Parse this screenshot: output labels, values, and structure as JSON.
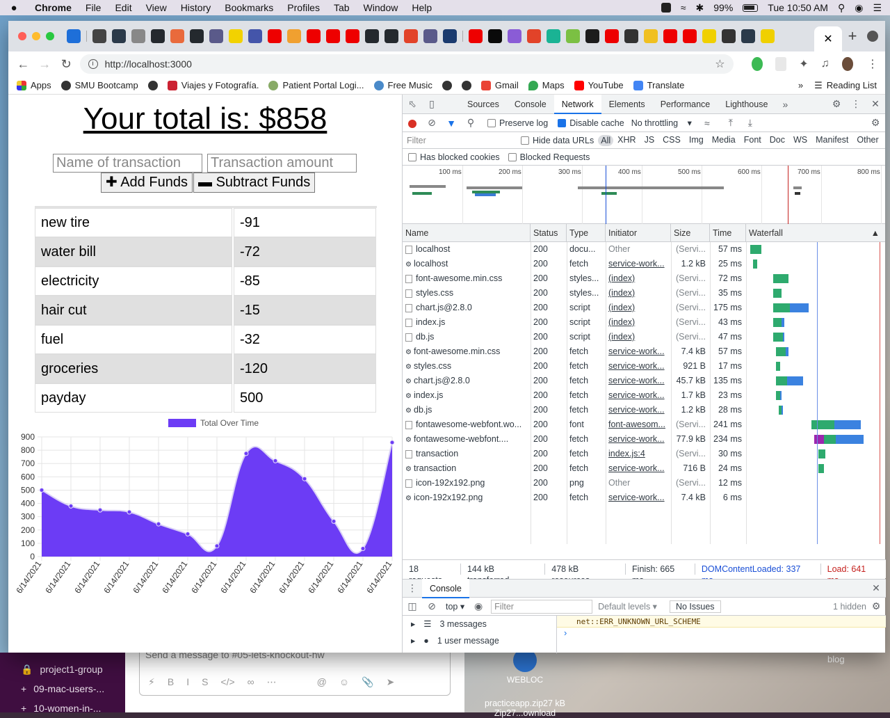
{
  "menubar": {
    "app": "Chrome",
    "items": [
      "File",
      "Edit",
      "View",
      "History",
      "Bookmarks",
      "Profiles",
      "Tab",
      "Window",
      "Help"
    ],
    "battery": "99%",
    "clock": "Tue 10:50 AM"
  },
  "browser": {
    "url": "http://localhost:3000",
    "bookmarks": [
      "Apps",
      "SMU Bootcamp",
      "Viajes y Fotografía.",
      "Patient Portal Logi...",
      "Free Music",
      "Gmail",
      "Maps",
      "YouTube",
      "Translate"
    ],
    "reading_list": "Reading List",
    "overflow": "»"
  },
  "app": {
    "total_label": "Your total is: $858",
    "name_placeholder": "Name of transaction",
    "amount_placeholder": "Transaction amount",
    "add_label": "Add Funds",
    "subtract_label": "Subtract Funds",
    "transactions": [
      {
        "name": "new tire",
        "value": "-91"
      },
      {
        "name": "water bill",
        "value": "-72"
      },
      {
        "name": "electricity",
        "value": "-85"
      },
      {
        "name": "hair cut",
        "value": "-15"
      },
      {
        "name": "fuel",
        "value": "-32"
      },
      {
        "name": "groceries",
        "value": "-120"
      },
      {
        "name": "payday",
        "value": "500"
      }
    ]
  },
  "chart_data": {
    "type": "area",
    "series": [
      {
        "name": "Total Over Time",
        "values": [
          500,
          380,
          350,
          335,
          245,
          170,
          80,
          775,
          720,
          585,
          265,
          60,
          858
        ]
      }
    ],
    "categories": [
      "6/14/2021",
      "6/14/2021",
      "6/14/2021",
      "6/14/2021",
      "6/14/2021",
      "6/14/2021",
      "6/14/2021",
      "6/14/2021",
      "6/14/2021",
      "6/14/2021",
      "6/14/2021",
      "6/14/2021",
      "6/14/2021"
    ],
    "tick_labels": [
      "6/14/2021",
      "6/14/2021",
      "6/14/2021",
      "6/14/2021",
      "6/14/2021",
      "6/14/2021",
      "6/14/2021",
      "6/14/2021",
      "6/14/2021",
      "6/14/2021",
      "6/14/2021",
      "6/14/2021",
      "6/14/2021"
    ],
    "yticks": [
      "0",
      "100",
      "200",
      "300",
      "400",
      "500",
      "600",
      "700",
      "800",
      "900"
    ],
    "ylim": [
      0,
      900
    ],
    "grid": true,
    "legend": "top",
    "color": "#6c3cf5"
  },
  "devtools": {
    "tabs": [
      "Sources",
      "Console",
      "Network",
      "Elements",
      "Performance",
      "Lighthouse"
    ],
    "active_tab": "Network",
    "more": "»",
    "preserve_log": "Preserve log",
    "disable_cache": "Disable cache",
    "throttling": "No throttling",
    "filter_placeholder": "Filter",
    "hide_data_urls": "Hide data URLs",
    "filter_types": [
      "All",
      "XHR",
      "JS",
      "CSS",
      "Img",
      "Media",
      "Font",
      "Doc",
      "WS",
      "Manifest",
      "Other"
    ],
    "has_blocked_cookies": "Has blocked cookies",
    "blocked_requests": "Blocked Requests",
    "overview_ticks": [
      "100 ms",
      "200 ms",
      "300 ms",
      "400 ms",
      "500 ms",
      "600 ms",
      "700 ms",
      "800 ms"
    ],
    "columns": [
      "Name",
      "Status",
      "Type",
      "Initiator",
      "Size",
      "Time",
      "Waterfall"
    ],
    "requests": [
      {
        "name": "localhost",
        "sw": false,
        "status": "200",
        "type": "docu...",
        "initiator": "Other",
        "init_link": false,
        "size": "(Servi...",
        "time": "57 ms",
        "wf_start": 0.03,
        "wf_wait": 0.08,
        "wf_dl": 0.0
      },
      {
        "name": "localhost",
        "sw": true,
        "status": "200",
        "type": "fetch",
        "initiator": "service-work...",
        "init_link": true,
        "size": "1.2 kB",
        "time": "25 ms",
        "wf_start": 0.05,
        "wf_wait": 0.03,
        "wf_dl": 0.0
      },
      {
        "name": "font-awesome.min.css",
        "sw": false,
        "status": "200",
        "type": "styles...",
        "initiator": "(index)",
        "init_link": true,
        "size": "(Servi...",
        "time": "72 ms",
        "wf_start": 0.2,
        "wf_wait": 0.11,
        "wf_dl": 0.0
      },
      {
        "name": "styles.css",
        "sw": false,
        "status": "200",
        "type": "styles...",
        "initiator": "(index)",
        "init_link": true,
        "size": "(Servi...",
        "time": "35 ms",
        "wf_start": 0.2,
        "wf_wait": 0.06,
        "wf_dl": 0.0
      },
      {
        "name": "chart.js@2.8.0",
        "sw": false,
        "status": "200",
        "type": "script",
        "initiator": "(index)",
        "init_link": true,
        "size": "(Servi...",
        "time": "175 ms",
        "wf_start": 0.2,
        "wf_wait": 0.12,
        "wf_dl": 0.14
      },
      {
        "name": "index.js",
        "sw": false,
        "status": "200",
        "type": "script",
        "initiator": "(index)",
        "init_link": true,
        "size": "(Servi...",
        "time": "43 ms",
        "wf_start": 0.2,
        "wf_wait": 0.06,
        "wf_dl": 0.02
      },
      {
        "name": "db.js",
        "sw": false,
        "status": "200",
        "type": "script",
        "initiator": "(index)",
        "init_link": true,
        "size": "(Servi...",
        "time": "47 ms",
        "wf_start": 0.2,
        "wf_wait": 0.07,
        "wf_dl": 0.01
      },
      {
        "name": "font-awesome.min.css",
        "sw": true,
        "status": "200",
        "type": "fetch",
        "initiator": "service-work...",
        "init_link": true,
        "size": "7.4 kB",
        "time": "57 ms",
        "wf_start": 0.22,
        "wf_wait": 0.07,
        "wf_dl": 0.02
      },
      {
        "name": "styles.css",
        "sw": true,
        "status": "200",
        "type": "fetch",
        "initiator": "service-work...",
        "init_link": true,
        "size": "921 B",
        "time": "17 ms",
        "wf_start": 0.22,
        "wf_wait": 0.03,
        "wf_dl": 0.0
      },
      {
        "name": "chart.js@2.8.0",
        "sw": true,
        "status": "200",
        "type": "fetch",
        "initiator": "service-work...",
        "init_link": true,
        "size": "45.7 kB",
        "time": "135 ms",
        "wf_start": 0.22,
        "wf_wait": 0.08,
        "wf_dl": 0.12
      },
      {
        "name": "index.js",
        "sw": true,
        "status": "200",
        "type": "fetch",
        "initiator": "service-work...",
        "init_link": true,
        "size": "1.7 kB",
        "time": "23 ms",
        "wf_start": 0.22,
        "wf_wait": 0.03,
        "wf_dl": 0.01
      },
      {
        "name": "db.js",
        "sw": true,
        "status": "200",
        "type": "fetch",
        "initiator": "service-work...",
        "init_link": true,
        "size": "1.2 kB",
        "time": "28 ms",
        "wf_start": 0.24,
        "wf_wait": 0.02,
        "wf_dl": 0.01
      },
      {
        "name": "fontawesome-webfont.wo...",
        "sw": false,
        "status": "200",
        "type": "font",
        "initiator": "font-awesom...",
        "init_link": true,
        "size": "(Servi...",
        "time": "241 ms",
        "wf_start": 0.48,
        "wf_wait": 0.17,
        "wf_dl": 0.19
      },
      {
        "name": "fontawesome-webfont....",
        "sw": true,
        "status": "200",
        "type": "fetch",
        "initiator": "service-work...",
        "init_link": true,
        "size": "77.9 kB",
        "time": "234 ms",
        "wf_start": 0.5,
        "wf_wait": 0.16,
        "wf_dl": 0.2
      },
      {
        "name": "transaction",
        "sw": false,
        "status": "200",
        "type": "fetch",
        "initiator": "index.js:4",
        "init_link": true,
        "size": "(Servi...",
        "time": "30 ms",
        "wf_start": 0.53,
        "wf_wait": 0.05,
        "wf_dl": 0.0
      },
      {
        "name": "transaction",
        "sw": true,
        "status": "200",
        "type": "fetch",
        "initiator": "service-work...",
        "init_link": true,
        "size": "716 B",
        "time": "24 ms",
        "wf_start": 0.53,
        "wf_wait": 0.04,
        "wf_dl": 0.0
      },
      {
        "name": "icon-192x192.png",
        "sw": false,
        "status": "200",
        "type": "png",
        "initiator": "Other",
        "init_link": false,
        "size": "(Servi...",
        "time": "12 ms",
        "wf_start": 0.0,
        "wf_wait": 0.0,
        "wf_dl": 0.0
      },
      {
        "name": "icon-192x192.png",
        "sw": true,
        "status": "200",
        "type": "fetch",
        "initiator": "service-work...",
        "init_link": true,
        "size": "7.4 kB",
        "time": "6 ms",
        "wf_start": 0.0,
        "wf_wait": 0.0,
        "wf_dl": 0.0
      }
    ],
    "summary": {
      "requests": "18 requests",
      "transferred": "144 kB transferred",
      "resources": "478 kB resources",
      "finish": "Finish: 665 ms",
      "dcl": "DOMContentLoaded: 337 ms",
      "load": "Load: 641 ms"
    },
    "console": {
      "tab": "Console",
      "context": "top",
      "filter_placeholder": "Filter",
      "levels": "Default levels",
      "issues": "No Issues",
      "hidden": "1 hidden",
      "messages": "3 messages",
      "user_messages": "1 user message",
      "error": "net::ERR_UNKNOWN_URL_SCHEME",
      "prompt": "›"
    }
  },
  "desktop": {
    "slack_channels": [
      "project1-group",
      "09-mac-users-...",
      "10-women-in-..."
    ],
    "slack_placeholder": "Send a message to #05-lets-knockout-hw",
    "file_label": "WEBLOC",
    "file_name": "practiceapp.zip27 kB Zip27...ownload",
    "blog_label": "blog"
  }
}
